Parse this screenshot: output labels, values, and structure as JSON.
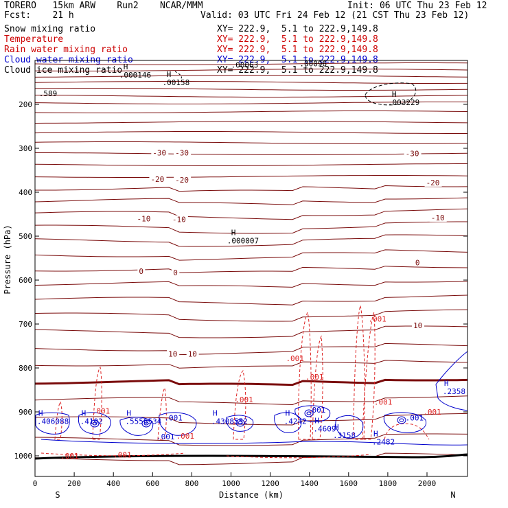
{
  "header": {
    "model": "TORERO   15km ARW    Run2    NCAR/MMM",
    "init": "Init: 06 UTC Thu 23 Feb 12",
    "fcst": "Fcst:    21 h",
    "valid": "Valid: 03 UTC Fri 24 Feb 12 (21 CST Thu 23 Feb 12)"
  },
  "fields": [
    {
      "name": "Snow mixing ratio",
      "color": "#000000",
      "xy": "XY= 222.9,  5.1 to 222.9,149.8"
    },
    {
      "name": "Temperature",
      "color": "#cc0000",
      "xy": "XY= 222.9,  5.1 to 222.9,149.8"
    },
    {
      "name": "Rain water mixing ratio",
      "color": "#cc0000",
      "xy": "XY= 222.9,  5.1 to 222.9,149.8"
    },
    {
      "name": "Cloud water mixing ratio",
      "color": "#0000cc",
      "xy": "XY= 222.9,  5.1 to 222.9,149.8"
    },
    {
      "name": "Cloud ice mixing ratio",
      "color": "#000000",
      "xy": "XY= 222.9,  5.1 to 222.9,149.8"
    }
  ],
  "chart_data": {
    "type": "contour-cross-section",
    "xlabel": "Distance (km)",
    "ylabel": "Pressure (hPa)",
    "xlim": [
      0,
      2200
    ],
    "ylim": [
      1050,
      100
    ],
    "x_ticks": [
      0,
      200,
      400,
      600,
      800,
      1000,
      1200,
      1400,
      1600,
      1800,
      2000
    ],
    "x_tick_labels": [
      "0",
      "200",
      "400",
      "600",
      "800",
      "1000",
      "1200",
      "1400",
      "1600",
      "1800",
      "2000"
    ],
    "y_ticks": [
      200,
      300,
      400,
      500,
      600,
      700,
      800,
      900,
      1000
    ],
    "y_tick_labels": [
      "200",
      "300",
      "400",
      "500",
      "600",
      "700",
      "800",
      "900",
      "1000"
    ],
    "x_end_labels": {
      "left": "S",
      "right": "N"
    },
    "temperature_contours_c": [
      -30,
      -20,
      -10,
      0,
      10
    ],
    "temperature_labels": [
      {
        "text": "-30",
        "x": 600,
        "p": 310
      },
      {
        "text": "-30",
        "x": 715,
        "p": 310
      },
      {
        "text": "-30",
        "x": 1890,
        "p": 312
      },
      {
        "text": "-20",
        "x": 590,
        "p": 370
      },
      {
        "text": "-20",
        "x": 715,
        "p": 372
      },
      {
        "text": "-20",
        "x": 1995,
        "p": 378
      },
      {
        "text": "-10",
        "x": 520,
        "p": 460
      },
      {
        "text": "-10",
        "x": 700,
        "p": 462
      },
      {
        "text": "-10",
        "x": 2020,
        "p": 458
      },
      {
        "text": "0",
        "x": 530,
        "p": 580
      },
      {
        "text": "0",
        "x": 705,
        "p": 583
      },
      {
        "text": "0",
        "x": 1940,
        "p": 560
      },
      {
        "text": "10",
        "x": 680,
        "p": 768
      },
      {
        "text": "10",
        "x": 780,
        "p": 768
      },
      {
        "text": "10",
        "x": 1930,
        "p": 703
      }
    ],
    "maxima_labels": [
      {
        "marker": "H",
        "value": ".000146",
        "x": 430,
        "p": 133
      },
      {
        "marker": "H",
        "value": ".00158",
        "x": 650,
        "p": 150
      },
      {
        "marker": "H",
        "value": ".000007",
        "x": 980,
        "p": 510
      },
      {
        "marker": "",
        "value": ".589",
        "x": 20,
        "p": 175
      },
      {
        "marker": "H",
        "value": ".003229",
        "x": 1800,
        "p": 195
      },
      {
        "marker": "",
        "value": ".00063",
        "x": 1000,
        "p": 110
      },
      {
        "marker": "",
        "value": ".00096",
        "x": 1350,
        "p": 107
      }
    ],
    "rain_labels": [
      {
        "value": ".001",
        "x": 1700,
        "p": 688
      },
      {
        "value": ".001",
        "x": 1280,
        "p": 778
      },
      {
        "value": ".001",
        "x": 1380,
        "p": 820
      },
      {
        "value": ".001",
        "x": 1020,
        "p": 872
      },
      {
        "value": ".001",
        "x": 1730,
        "p": 877
      },
      {
        "value": ".001",
        "x": 290,
        "p": 898
      },
      {
        "value": ".001",
        "x": 720,
        "p": 955
      },
      {
        "value": ".001",
        "x": 400,
        "p": 998
      },
      {
        "value": ".001",
        "x": 130,
        "p": 1000
      },
      {
        "value": ".001",
        "x": 1980,
        "p": 900
      }
    ],
    "cloud_water_labels": [
      {
        "marker": "H",
        "value": ".406088",
        "x": 10,
        "p": 918
      },
      {
        "marker": "H",
        "value": ".4102",
        "x": 230,
        "p": 918
      },
      {
        "marker": "H",
        "value": ".5556534",
        "x": 460,
        "p": 918
      },
      {
        "marker": "",
        "value": ".001",
        "x": 660,
        "p": 910
      },
      {
        "marker": "",
        "value": ".001",
        "x": 620,
        "p": 953
      },
      {
        "marker": "H",
        "value": ".4308552",
        "x": 900,
        "p": 918
      },
      {
        "marker": "H",
        "value": ".4242",
        "x": 1270,
        "p": 918
      },
      {
        "marker": "",
        "value": ".001",
        "x": 1390,
        "p": 892
      },
      {
        "marker": "H",
        "value": ".4609",
        "x": 1420,
        "p": 935
      },
      {
        "marker": "H",
        "value": ".3158",
        "x": 1520,
        "p": 950
      },
      {
        "marker": "H",
        "value": ".2482",
        "x": 1720,
        "p": 965
      },
      {
        "marker": "",
        "value": ".001",
        "x": 1890,
        "p": 910
      },
      {
        "marker": "H",
        "value": ".2358",
        "x": 2080,
        "p": 850
      }
    ]
  }
}
